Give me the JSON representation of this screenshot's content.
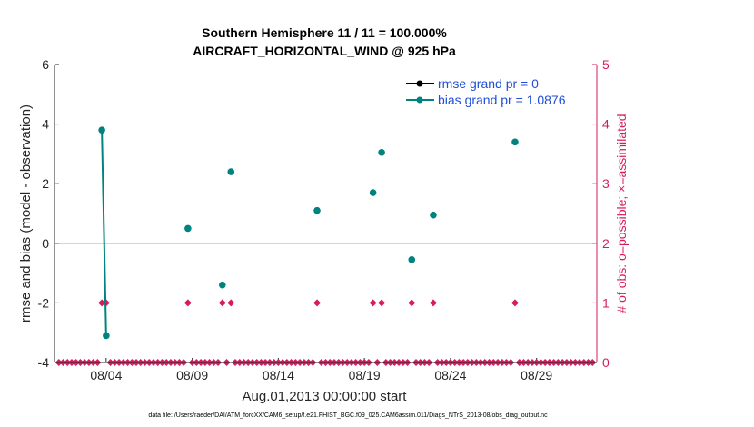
{
  "chart_data": {
    "type": "scatter",
    "title": [
      "Southern Hemisphere 11 / 11 = 100.000%",
      "AIRCRAFT_HORIZONTAL_WIND @ 925 hPa"
    ],
    "xlabel": "Aug.01,2013 00:00:00 start",
    "ylabel": "rmse and bias (model - observation)",
    "ylabel_right": "# of obs: o=possible; ×=assimilated",
    "footer": "data file: /Users/raeder/DAI/ATM_forcXX/CAM6_setup/f.e21.FHIST_BGC.f09_025.CAM6assim.011/Diags_NTrS_2013-08/obs_diag_output.nc",
    "xlim": [
      0,
      31.5
    ],
    "ylim": [
      -4,
      6
    ],
    "ylim_right": [
      0,
      5
    ],
    "x_tick_values": [
      3,
      8,
      13,
      18,
      23,
      28
    ],
    "x_tick_labels": [
      "08/04",
      "08/09",
      "08/14",
      "08/19",
      "08/24",
      "08/29"
    ],
    "y_ticks": [
      -4,
      -2,
      0,
      2,
      4,
      6
    ],
    "y_tick_labels": [
      "-4",
      "-2",
      "0",
      "2",
      "4",
      "6"
    ],
    "y_right_ticks": [
      0,
      1,
      2,
      3,
      4,
      5
    ],
    "y_right_tick_labels": [
      "0",
      "1",
      "2",
      "3",
      "4",
      "5"
    ],
    "zero_line": 0,
    "series": [
      {
        "name": "rmse grand pr = 0",
        "color": "#000000",
        "marker": "circle",
        "x": [],
        "y": []
      },
      {
        "name": "bias grand pr = 1.0876",
        "color": "#00827f",
        "marker": "circle",
        "x": [
          2.75,
          3.0,
          7.75,
          9.75,
          10.25,
          15.25,
          18.5,
          19.0,
          20.75,
          22.0,
          26.75
        ],
        "y": [
          3.8,
          -3.1,
          0.5,
          -1.4,
          2.4,
          1.1,
          1.7,
          3.05,
          -0.55,
          0.95,
          3.4
        ],
        "connected_pairs": [
          [
            0,
            1
          ]
        ]
      }
    ],
    "obs_possible": {
      "color": "#d81b60",
      "x": [
        2.75,
        3.0,
        7.75,
        9.75,
        10.25,
        15.25,
        18.5,
        19.0,
        20.75,
        22.0,
        26.75
      ],
      "count": [
        1,
        1,
        1,
        1,
        1,
        1,
        1,
        1,
        1,
        1,
        1
      ],
      "zero_interval": 0.25
    }
  }
}
